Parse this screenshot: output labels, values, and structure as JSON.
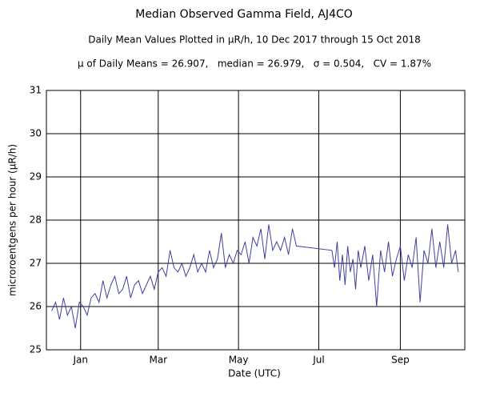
{
  "chart_data": {
    "type": "line",
    "title": "Median Observed Gamma Field, AJ4CO",
    "subtitle": "Daily Mean Values Plotted in μR/h, 10 Dec 2017 through 15 Oct 2018",
    "annotation": "μ of Daily Means = 26.907,   median = 26.979,   σ = 0.504,   CV = 1.87%",
    "xlabel": "Date (UTC)",
    "ylabel": "microroentgens per hour (μR/h)",
    "x": [
      "2017-12-10",
      "2017-12-13",
      "2017-12-16",
      "2017-12-19",
      "2017-12-22",
      "2017-12-25",
      "2017-12-28",
      "2017-12-31",
      "2018-01-03",
      "2018-01-06",
      "2018-01-09",
      "2018-01-12",
      "2018-01-15",
      "2018-01-18",
      "2018-01-21",
      "2018-01-24",
      "2018-01-27",
      "2018-01-30",
      "2018-02-02",
      "2018-02-05",
      "2018-02-08",
      "2018-02-11",
      "2018-02-14",
      "2018-02-17",
      "2018-02-20",
      "2018-02-23",
      "2018-02-26",
      "2018-03-01",
      "2018-03-04",
      "2018-03-07",
      "2018-03-10",
      "2018-03-13",
      "2018-03-16",
      "2018-03-19",
      "2018-03-22",
      "2018-03-25",
      "2018-03-28",
      "2018-03-31",
      "2018-04-03",
      "2018-04-06",
      "2018-04-09",
      "2018-04-12",
      "2018-04-15",
      "2018-04-18",
      "2018-04-21",
      "2018-04-24",
      "2018-04-27",
      "2018-04-30",
      "2018-05-03",
      "2018-05-06",
      "2018-05-09",
      "2018-05-12",
      "2018-05-15",
      "2018-05-18",
      "2018-05-21",
      "2018-05-24",
      "2018-05-27",
      "2018-05-30",
      "2018-06-02",
      "2018-06-05",
      "2018-06-08",
      "2018-06-11",
      "2018-06-14",
      "2018-07-11",
      "2018-07-13",
      "2018-07-15",
      "2018-07-17",
      "2018-07-19",
      "2018-07-21",
      "2018-07-23",
      "2018-07-25",
      "2018-07-27",
      "2018-07-29",
      "2018-07-31",
      "2018-08-02",
      "2018-08-05",
      "2018-08-08",
      "2018-08-11",
      "2018-08-14",
      "2018-08-17",
      "2018-08-20",
      "2018-08-23",
      "2018-08-26",
      "2018-08-29",
      "2018-09-01",
      "2018-09-04",
      "2018-09-07",
      "2018-09-10",
      "2018-09-13",
      "2018-09-16",
      "2018-09-19",
      "2018-09-22",
      "2018-09-25",
      "2018-09-28",
      "2018-10-01",
      "2018-10-04",
      "2018-10-07",
      "2018-10-10",
      "2018-10-13",
      "2018-10-15"
    ],
    "series": [
      {
        "color": "#4040a0",
        "values": [
          25.9,
          26.1,
          25.7,
          26.2,
          25.8,
          26.0,
          25.5,
          26.1,
          26.0,
          25.8,
          26.2,
          26.3,
          26.1,
          26.6,
          26.2,
          26.5,
          26.7,
          26.3,
          26.4,
          26.7,
          26.2,
          26.5,
          26.6,
          26.3,
          26.5,
          26.7,
          26.4,
          26.8,
          26.9,
          26.7,
          27.3,
          26.9,
          26.8,
          27.0,
          26.7,
          26.9,
          27.2,
          26.8,
          27.0,
          26.8,
          27.3,
          26.9,
          27.1,
          27.7,
          26.9,
          27.2,
          27.0,
          27.3,
          27.2,
          27.5,
          27.0,
          27.6,
          27.4,
          27.8,
          27.1,
          27.9,
          27.3,
          27.5,
          27.3,
          27.6,
          27.2,
          27.8,
          27.4,
          27.3,
          26.9,
          27.5,
          26.6,
          27.2,
          26.5,
          27.4,
          26.8,
          27.1,
          26.4,
          27.3,
          26.9,
          27.4,
          26.6,
          27.2,
          26.0,
          27.3,
          26.8,
          27.5,
          26.7,
          27.1,
          27.4,
          26.6,
          27.2,
          26.9,
          27.6,
          26.1,
          27.3,
          27.0,
          27.8,
          26.9,
          27.5,
          26.9,
          27.9,
          27.0,
          27.3,
          26.8
        ]
      }
    ],
    "xlim": [
      "2017-12-06",
      "2018-10-20"
    ],
    "xticks": [
      {
        "value": "2018-01-01",
        "label": "Jan"
      },
      {
        "value": "2018-03-01",
        "label": "Mar"
      },
      {
        "value": "2018-05-01",
        "label": "May"
      },
      {
        "value": "2018-07-01",
        "label": "Jul"
      },
      {
        "value": "2018-09-01",
        "label": "Sep"
      }
    ],
    "ylim": [
      25,
      31
    ],
    "yticks": [
      25,
      26,
      27,
      28,
      29,
      30,
      31
    ],
    "grid": true
  }
}
